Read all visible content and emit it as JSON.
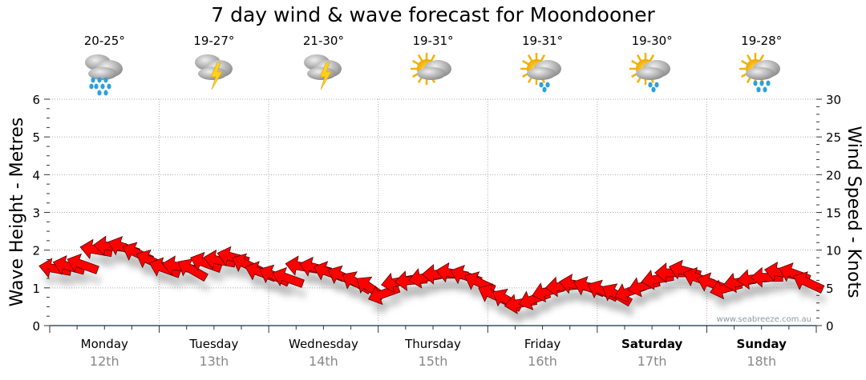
{
  "chart_data": {
    "type": "line",
    "title": "7 day wind & wave forecast for Moondooner",
    "ylabel": "Wave Height - Metres",
    "y2label": "Wind Speed - Knots",
    "ylim": [
      0,
      6
    ],
    "y2lim": [
      0,
      30
    ],
    "yticks": [
      "0",
      "1",
      "2",
      "3",
      "4",
      "5",
      "6"
    ],
    "y2ticks": [
      "0",
      "5",
      "10",
      "15",
      "20",
      "25",
      "30"
    ],
    "grid": true,
    "days": [
      {
        "name": "Monday",
        "date": "12th",
        "temp": "20-25°",
        "icon": "rain-icon",
        "bold": false
      },
      {
        "name": "Tuesday",
        "date": "13th",
        "temp": "19-27°",
        "icon": "thunderstorm-icon",
        "bold": false
      },
      {
        "name": "Wednesday",
        "date": "14th",
        "temp": "21-30°",
        "icon": "thunderstorm-icon",
        "bold": false
      },
      {
        "name": "Thursday",
        "date": "15th",
        "temp": "19-31°",
        "icon": "partly-cloudy-icon",
        "bold": false
      },
      {
        "name": "Friday",
        "date": "16th",
        "temp": "19-31°",
        "icon": "sun-cloud-showers-icon",
        "bold": false
      },
      {
        "name": "Saturday",
        "date": "17th",
        "temp": "19-30°",
        "icon": "sun-cloud-showers-icon",
        "bold": true
      },
      {
        "name": "Sunday",
        "date": "18th",
        "temp": "19-28°",
        "icon": "sun-cloud-rain-icon",
        "bold": true
      }
    ],
    "series": [
      {
        "name": "Wind speed (knots)",
        "points_per_day": 8,
        "values": [
          7.5,
          7.8,
          8.0,
          10.0,
          10.5,
          10.3,
          9.5,
          8.5,
          7.5,
          7.8,
          7.3,
          8.2,
          8.6,
          9.0,
          8.0,
          7.0,
          6.5,
          6.2,
          7.8,
          7.6,
          7.0,
          6.4,
          5.6,
          4.9,
          4.3,
          5.8,
          6.0,
          6.4,
          6.8,
          6.9,
          6.5,
          5.6,
          4.0,
          3.3,
          3.0,
          3.6,
          4.6,
          5.2,
          5.4,
          5.0,
          4.5,
          4.0,
          4.6,
          5.3,
          6.2,
          7.0,
          7.2,
          6.2,
          5.5,
          5.0,
          5.8,
          6.2,
          6.4,
          7.0,
          6.8,
          5.6
        ],
        "direction_deg": [
          100,
          105,
          110,
          100,
          95,
          110,
          115,
          115,
          110,
          100,
          120,
          110,
          100,
          105,
          115,
          110,
          115,
          110,
          100,
          105,
          110,
          115,
          120,
          125,
          70,
          80,
          85,
          80,
          90,
          100,
          110,
          115,
          115,
          120,
          80,
          70,
          75,
          85,
          100,
          110,
          115,
          120,
          70,
          75,
          80,
          90,
          105,
          110,
          110,
          75,
          80,
          85,
          90,
          100,
          110,
          115
        ]
      }
    ],
    "watermark": "www.seabreeze.com.au"
  }
}
